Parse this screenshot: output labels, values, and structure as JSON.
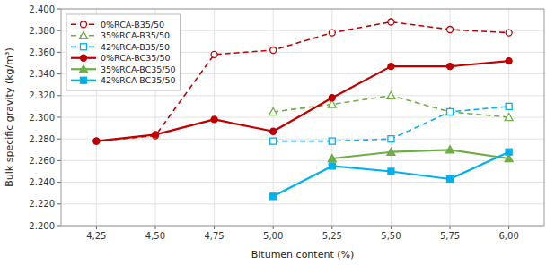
{
  "chart_data": {
    "type": "line",
    "xlabel": "Bitumen content (%)",
    "ylabel": "Bulk specific gravity (kg/m³)",
    "x": [
      4.25,
      4.5,
      4.75,
      5.0,
      5.25,
      5.5,
      5.75,
      6.0
    ],
    "xlim": [
      4.1,
      6.15
    ],
    "xticks": [
      {
        "value": 4.25,
        "label": "4,25"
      },
      {
        "value": 4.5,
        "label": "4,50"
      },
      {
        "value": 4.75,
        "label": "4,75"
      },
      {
        "value": 5.0,
        "label": "5,00"
      },
      {
        "value": 5.25,
        "label": "5,25"
      },
      {
        "value": 5.5,
        "label": "5,50"
      },
      {
        "value": 5.75,
        "label": "5,75"
      },
      {
        "value": 6.0,
        "label": "6,00"
      }
    ],
    "ylim": [
      2.2,
      2.4
    ],
    "yticks": [
      {
        "value": 2.2,
        "label": "2.200"
      },
      {
        "value": 2.22,
        "label": "2.220"
      },
      {
        "value": 2.24,
        "label": "2.240"
      },
      {
        "value": 2.26,
        "label": "2.260"
      },
      {
        "value": 2.28,
        "label": "2.280"
      },
      {
        "value": 2.3,
        "label": "2.300"
      },
      {
        "value": 2.32,
        "label": "2.320"
      },
      {
        "value": 2.34,
        "label": "2.340"
      },
      {
        "value": 2.36,
        "label": "2.360"
      },
      {
        "value": 2.38,
        "label": "2.380"
      },
      {
        "value": 2.4,
        "label": "2.400"
      }
    ],
    "grid": true,
    "legend": "upper left",
    "series": [
      {
        "name": "0%RCA-B35/50",
        "color": "#c00000",
        "line_style": "dashed",
        "marker": "circle-open",
        "values": [
          2.278,
          2.283,
          2.358,
          2.362,
          2.378,
          2.388,
          2.381,
          2.378
        ]
      },
      {
        "name": "35%RCA-B35/50",
        "color": "#70ad47",
        "line_style": "dashed",
        "marker": "triangle-open",
        "values": [
          null,
          null,
          null,
          2.305,
          2.312,
          2.32,
          2.305,
          2.3
        ]
      },
      {
        "name": "42%RCA-B35/50",
        "color": "#00b0f0",
        "line_style": "dashed",
        "marker": "square-open",
        "values": [
          null,
          null,
          null,
          2.278,
          2.278,
          2.28,
          2.305,
          2.31
        ]
      },
      {
        "name": "0%RCA-BC35/50",
        "color": "#c00000",
        "line_style": "solid",
        "marker": "circle",
        "values": [
          2.278,
          2.284,
          2.298,
          2.287,
          2.318,
          2.347,
          2.347,
          2.352
        ]
      },
      {
        "name": "35%RCA-BC35/50",
        "color": "#70ad47",
        "line_style": "solid",
        "marker": "triangle",
        "values": [
          null,
          null,
          null,
          null,
          2.262,
          2.268,
          2.27,
          2.262
        ]
      },
      {
        "name": "42%RCA-BC35/50",
        "color": "#00b0f0",
        "line_style": "solid",
        "marker": "square",
        "values": [
          null,
          null,
          null,
          2.227,
          2.255,
          2.25,
          2.243,
          2.268
        ]
      }
    ]
  }
}
